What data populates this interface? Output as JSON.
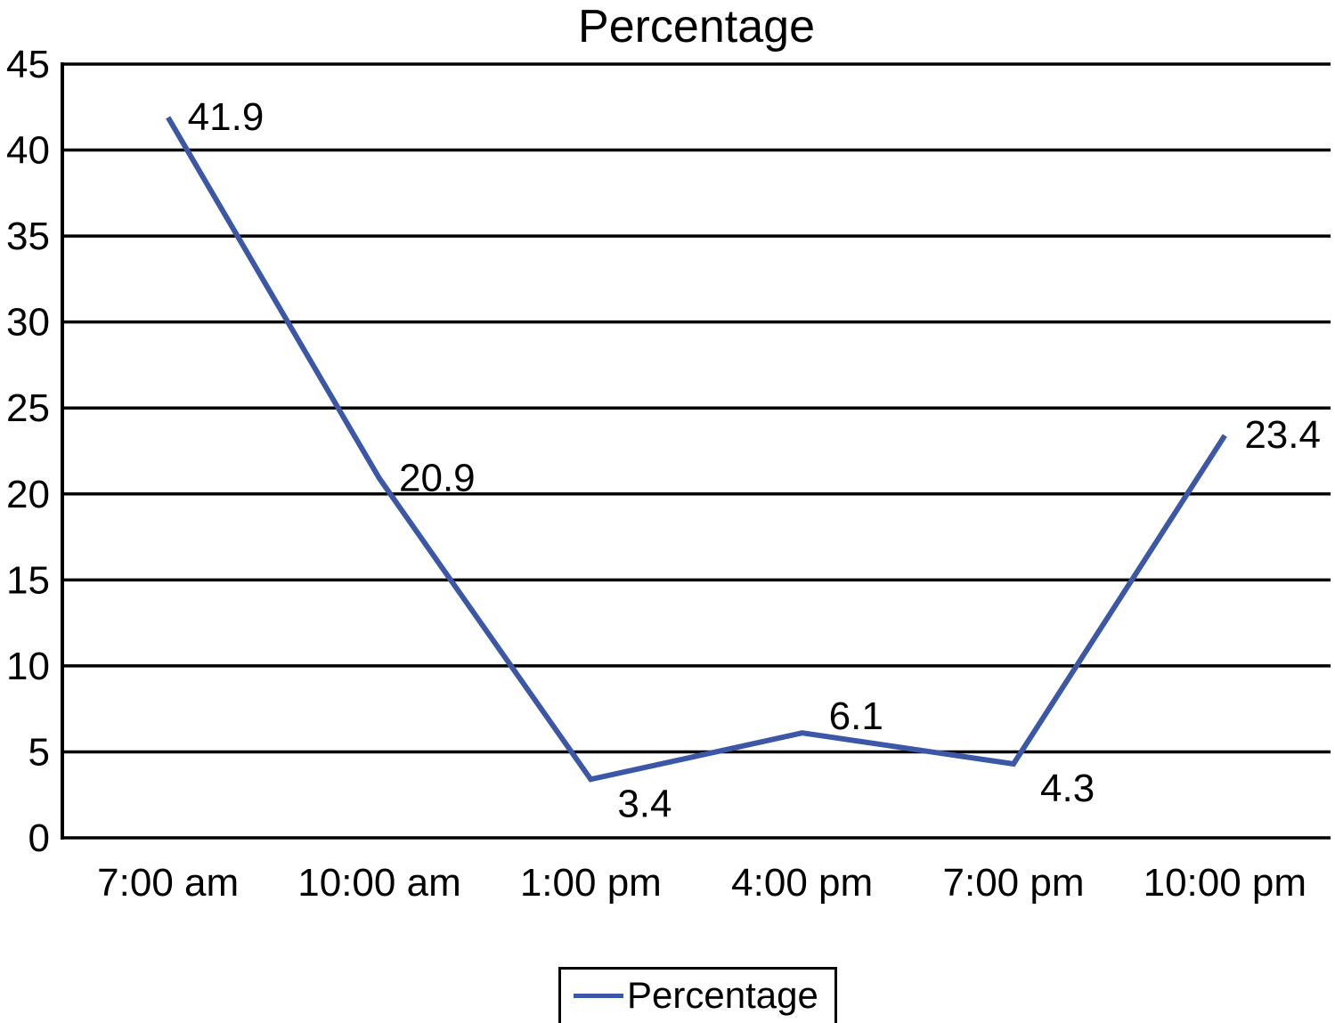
{
  "chart_data": {
    "type": "line",
    "title": "Percentage",
    "categories": [
      "7:00 am",
      "10:00 am",
      "1:00 pm",
      "4:00 pm",
      "7:00 pm",
      "10:00 pm"
    ],
    "series": [
      {
        "name": "Percentage",
        "values": [
          41.9,
          20.9,
          3.4,
          6.1,
          4.3,
          23.4
        ]
      }
    ],
    "ylim": [
      0,
      45
    ],
    "yticks": [
      0,
      5,
      10,
      15,
      20,
      25,
      30,
      35,
      40,
      45
    ],
    "grid": "horizontal",
    "line_color": "#3B57A5",
    "label_placements": [
      "right",
      "right",
      "below-right",
      "above-right",
      "below-right",
      "right"
    ],
    "legend": {
      "position": "bottom",
      "entries": [
        {
          "label": "Percentage",
          "color": "#3B57A5"
        }
      ]
    }
  }
}
